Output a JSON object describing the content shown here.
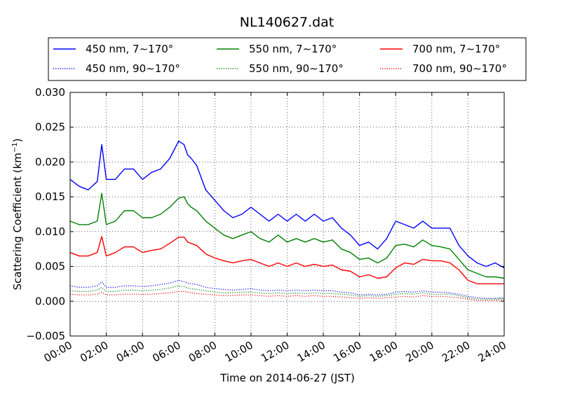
{
  "chart_data": {
    "type": "line",
    "title": "NL140627.dat",
    "xlabel": "Time on 2014-06-27 (JST)",
    "ylabel": "Scattering Coefficient (km",
    "ylabel_sup": "−1",
    "ylabel_close": ")",
    "xlim_hours": [
      0,
      24
    ],
    "ylim": [
      -0.005,
      0.03
    ],
    "x_ticks": [
      {
        "hour": 0,
        "label": "00:00"
      },
      {
        "hour": 2,
        "label": "02:00"
      },
      {
        "hour": 4,
        "label": "04:00"
      },
      {
        "hour": 6,
        "label": "06:00"
      },
      {
        "hour": 8,
        "label": "08:00"
      },
      {
        "hour": 10,
        "label": "10:00"
      },
      {
        "hour": 12,
        "label": "12:00"
      },
      {
        "hour": 14,
        "label": "14:00"
      },
      {
        "hour": 16,
        "label": "16:00"
      },
      {
        "hour": 18,
        "label": "18:00"
      },
      {
        "hour": 20,
        "label": "20:00"
      },
      {
        "hour": 22,
        "label": "22:00"
      },
      {
        "hour": 24,
        "label": "24:00"
      }
    ],
    "y_ticks": [
      {
        "value": -0.005,
        "label": "−0.005"
      },
      {
        "value": 0.0,
        "label": "0.000"
      },
      {
        "value": 0.005,
        "label": "0.005"
      },
      {
        "value": 0.01,
        "label": "0.010"
      },
      {
        "value": 0.015,
        "label": "0.015"
      },
      {
        "value": 0.02,
        "label": "0.020"
      },
      {
        "value": 0.025,
        "label": "0.025"
      },
      {
        "value": 0.03,
        "label": "0.030"
      }
    ],
    "grid": true,
    "legend_placement": "top, outside the plot, 3 columns",
    "hours": [
      0,
      0.5,
      1.0,
      1.5,
      1.75,
      2.0,
      2.5,
      3.0,
      3.5,
      4.0,
      4.5,
      5.0,
      5.5,
      6.0,
      6.3,
      6.5,
      6.7,
      7.0,
      7.5,
      8.0,
      8.5,
      9.0,
      9.5,
      10.0,
      10.5,
      11.0,
      11.5,
      12.0,
      12.5,
      13.0,
      13.5,
      14.0,
      14.5,
      15.0,
      15.5,
      16.0,
      16.5,
      17.0,
      17.5,
      18.0,
      18.5,
      19.0,
      19.5,
      20.0,
      20.5,
      21.0,
      21.5,
      22.0,
      22.5,
      23.0,
      23.5,
      24.0
    ],
    "series": [
      {
        "name": "450 nm, 7∼170°",
        "color": "#0000ff",
        "style": "solid",
        "values": [
          0.0175,
          0.0165,
          0.016,
          0.0172,
          0.0225,
          0.0175,
          0.0175,
          0.019,
          0.019,
          0.0175,
          0.0185,
          0.019,
          0.0205,
          0.023,
          0.0225,
          0.021,
          0.0205,
          0.0195,
          0.016,
          0.0145,
          0.013,
          0.012,
          0.0125,
          0.0135,
          0.0125,
          0.0115,
          0.0125,
          0.0115,
          0.0125,
          0.0115,
          0.0125,
          0.0115,
          0.012,
          0.0105,
          0.0095,
          0.008,
          0.0085,
          0.0075,
          0.009,
          0.0115,
          0.011,
          0.0105,
          0.0115,
          0.0105,
          0.0105,
          0.0105,
          0.008,
          0.0065,
          0.0055,
          0.005,
          0.0055,
          0.0048
        ]
      },
      {
        "name": "550 nm, 7∼170°",
        "color": "#008000",
        "style": "solid",
        "values": [
          0.0115,
          0.011,
          0.011,
          0.0115,
          0.0155,
          0.011,
          0.0115,
          0.013,
          0.013,
          0.012,
          0.012,
          0.0125,
          0.0135,
          0.0148,
          0.015,
          0.014,
          0.0135,
          0.013,
          0.0115,
          0.0105,
          0.0095,
          0.009,
          0.0095,
          0.01,
          0.009,
          0.0085,
          0.0095,
          0.0085,
          0.009,
          0.0085,
          0.009,
          0.0085,
          0.0088,
          0.0075,
          0.007,
          0.006,
          0.0062,
          0.0055,
          0.0062,
          0.008,
          0.0082,
          0.0078,
          0.0088,
          0.008,
          0.0078,
          0.0075,
          0.006,
          0.0045,
          0.004,
          0.0035,
          0.0035,
          0.0033
        ]
      },
      {
        "name": "700 nm, 7∼170°",
        "color": "#ff0000",
        "style": "solid",
        "values": [
          0.007,
          0.0065,
          0.0065,
          0.007,
          0.0093,
          0.0065,
          0.007,
          0.0078,
          0.0078,
          0.007,
          0.0073,
          0.0075,
          0.0083,
          0.0092,
          0.0092,
          0.0085,
          0.0083,
          0.008,
          0.0068,
          0.0062,
          0.0058,
          0.0055,
          0.0058,
          0.006,
          0.0055,
          0.005,
          0.0055,
          0.005,
          0.0055,
          0.005,
          0.0053,
          0.005,
          0.0052,
          0.0045,
          0.0043,
          0.0035,
          0.0038,
          0.0033,
          0.0035,
          0.0048,
          0.0055,
          0.0053,
          0.006,
          0.0058,
          0.0058,
          0.0055,
          0.0045,
          0.003,
          0.0025,
          0.0025,
          0.0025,
          0.0025
        ]
      },
      {
        "name": "450 nm, 90∼170°",
        "color": "#0000ff",
        "style": "dotted",
        "values": [
          0.0022,
          0.002,
          0.002,
          0.0022,
          0.0028,
          0.002,
          0.002,
          0.0022,
          0.0022,
          0.0021,
          0.0022,
          0.0024,
          0.0026,
          0.003,
          0.0028,
          0.0026,
          0.0025,
          0.0024,
          0.002,
          0.0018,
          0.0017,
          0.0016,
          0.0017,
          0.0018,
          0.0016,
          0.0015,
          0.0016,
          0.0015,
          0.0016,
          0.0015,
          0.0016,
          0.0015,
          0.0015,
          0.0013,
          0.0012,
          0.0009,
          0.001,
          0.0009,
          0.001,
          0.0013,
          0.0014,
          0.0013,
          0.0015,
          0.0013,
          0.0013,
          0.0012,
          0.001,
          0.0007,
          0.0005,
          0.0004,
          0.0004,
          0.0005
        ]
      },
      {
        "name": "550 nm, 90∼170°",
        "color": "#008000",
        "style": "dotted",
        "values": [
          0.0015,
          0.0014,
          0.0014,
          0.0016,
          0.002,
          0.0014,
          0.0014,
          0.0016,
          0.0016,
          0.0015,
          0.0016,
          0.0017,
          0.0019,
          0.0022,
          0.0021,
          0.0019,
          0.0018,
          0.0017,
          0.0015,
          0.0013,
          0.0012,
          0.0012,
          0.0013,
          0.0013,
          0.0012,
          0.0011,
          0.0012,
          0.0011,
          0.0012,
          0.0011,
          0.0012,
          0.0011,
          0.0011,
          0.001,
          0.0009,
          0.0007,
          0.0008,
          0.0007,
          0.0008,
          0.001,
          0.0011,
          0.001,
          0.0012,
          0.001,
          0.001,
          0.001,
          0.0008,
          0.0005,
          0.0003,
          0.0003,
          0.0003,
          0.0004
        ]
      },
      {
        "name": "700 nm, 90∼170°",
        "color": "#ff0000",
        "style": "dotted",
        "values": [
          0.001,
          0.0009,
          0.0009,
          0.001,
          0.0013,
          0.0009,
          0.0009,
          0.001,
          0.001,
          0.001,
          0.001,
          0.0011,
          0.0012,
          0.0014,
          0.0014,
          0.0013,
          0.0012,
          0.0011,
          0.001,
          0.0009,
          0.0008,
          0.0008,
          0.0009,
          0.0009,
          0.0008,
          0.0007,
          0.0008,
          0.0007,
          0.0008,
          0.0007,
          0.0008,
          0.0007,
          0.0007,
          0.0006,
          0.0005,
          0.0004,
          0.0005,
          0.0004,
          0.0005,
          0.0006,
          0.0007,
          0.0006,
          0.0008,
          0.0007,
          0.0007,
          0.0006,
          0.0005,
          0.0003,
          0.0001,
          0.0001,
          0.0001,
          0.0002
        ]
      }
    ],
    "legend_order": [
      0,
      1,
      2,
      3,
      4,
      5
    ]
  }
}
